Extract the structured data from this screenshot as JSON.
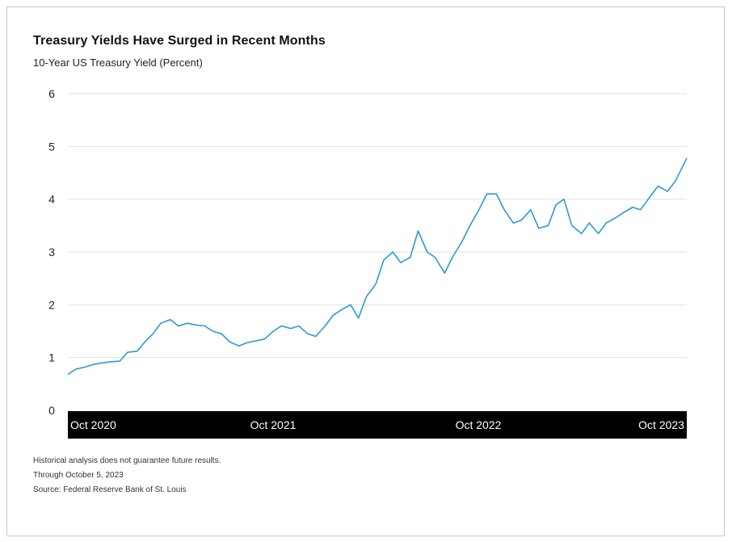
{
  "title": "Treasury Yields Have Surged in Recent Months",
  "subtitle": "10-Year US Treasury Yield (Percent)",
  "notes": {
    "disclaimer": "Historical analysis does not guarantee future results.",
    "through": "Through October 5, 2023",
    "source": "Source: Federal Reserve Bank of St. Louis"
  },
  "colors": {
    "line": "#2b9bd0",
    "axis_band": "#000000",
    "grid": "#e2e2e2"
  },
  "chart_data": {
    "type": "line",
    "title": "Treasury Yields Have Surged in Recent Months",
    "subtitle": "10-Year US Treasury Yield (Percent)",
    "ylim": [
      0,
      6
    ],
    "yticks": [
      "0",
      "1",
      "2",
      "3",
      "4",
      "5",
      "6"
    ],
    "xticks": [
      "Oct 2020",
      "Oct 2021",
      "Oct 2022",
      "Oct 2023"
    ],
    "xlim": [
      "2020-10-01",
      "2023-10-05"
    ],
    "grid": true,
    "series": [
      {
        "x": [
          "2020-10-01",
          "2020-10-15",
          "2020-11-01",
          "2020-11-15",
          "2020-12-01",
          "2020-12-15",
          "2021-01-01",
          "2021-01-15",
          "2021-02-01",
          "2021-02-15",
          "2021-03-01",
          "2021-03-15",
          "2021-04-01",
          "2021-04-15",
          "2021-05-01",
          "2021-05-15",
          "2021-06-01",
          "2021-06-15",
          "2021-07-01",
          "2021-07-15",
          "2021-08-01",
          "2021-08-15",
          "2021-09-01",
          "2021-09-15",
          "2021-10-01",
          "2021-10-15",
          "2021-11-01",
          "2021-11-15",
          "2021-12-01",
          "2021-12-15",
          "2022-01-01",
          "2022-01-15",
          "2022-02-01",
          "2022-02-15",
          "2022-03-01",
          "2022-03-15",
          "2022-04-01",
          "2022-04-15",
          "2022-05-01",
          "2022-05-15",
          "2022-06-01",
          "2022-06-15",
          "2022-07-01",
          "2022-07-15",
          "2022-08-01",
          "2022-08-15",
          "2022-09-01",
          "2022-09-15",
          "2022-10-01",
          "2022-10-15",
          "2022-11-01",
          "2022-11-15",
          "2022-12-01",
          "2022-12-15",
          "2023-01-01",
          "2023-01-15",
          "2023-02-01",
          "2023-02-15",
          "2023-03-01",
          "2023-03-15",
          "2023-04-01",
          "2023-04-15",
          "2023-05-01",
          "2023-05-15",
          "2023-06-01",
          "2023-06-15",
          "2023-07-01",
          "2023-07-15",
          "2023-08-01",
          "2023-08-15",
          "2023-09-01",
          "2023-09-15",
          "2023-10-05"
        ],
        "values": [
          0.68,
          0.78,
          0.82,
          0.87,
          0.9,
          0.92,
          0.93,
          1.1,
          1.12,
          1.3,
          1.45,
          1.65,
          1.72,
          1.6,
          1.65,
          1.62,
          1.6,
          1.5,
          1.45,
          1.3,
          1.22,
          1.28,
          1.32,
          1.35,
          1.5,
          1.6,
          1.55,
          1.6,
          1.45,
          1.4,
          1.6,
          1.8,
          1.92,
          2.0,
          1.75,
          2.15,
          2.4,
          2.85,
          3.0,
          2.8,
          2.9,
          3.4,
          3.0,
          2.9,
          2.6,
          2.9,
          3.2,
          3.5,
          3.8,
          4.1,
          4.1,
          3.8,
          3.55,
          3.6,
          3.8,
          3.45,
          3.5,
          3.9,
          4.0,
          3.5,
          3.35,
          3.55,
          3.35,
          3.55,
          3.65,
          3.75,
          3.85,
          3.8,
          4.05,
          4.25,
          4.15,
          4.35,
          4.78
        ]
      }
    ]
  }
}
